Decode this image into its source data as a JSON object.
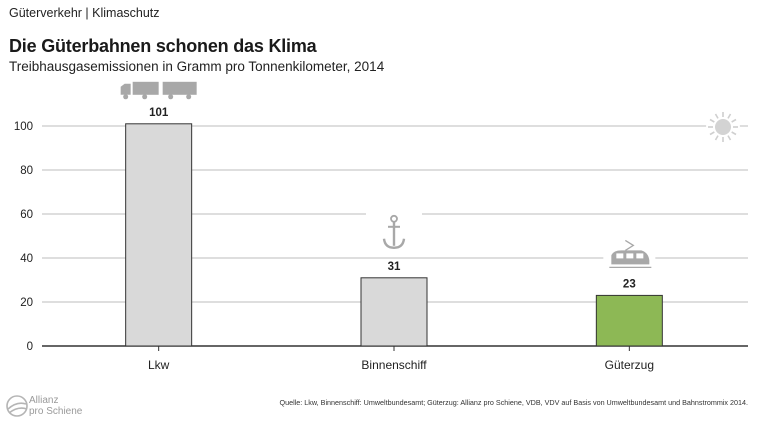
{
  "header": {
    "kicker": "Güterverkehr | Klimaschutz",
    "title": "Die Güterbahnen schonen das Klima",
    "subtitle": "Treibhausgasemissionen in Gramm pro Tonnenkilometer, 2014"
  },
  "chart_data": {
    "type": "bar",
    "title": "Die Güterbahnen schonen das Klima",
    "subtitle": "Treibhausgasemissionen in Gramm pro Tonnenkilometer, 2014",
    "xlabel": "",
    "ylabel": "",
    "categories": [
      "Lkw",
      "Binnenschiff",
      "Güterzug"
    ],
    "values": [
      101,
      31,
      23
    ],
    "value_labels": [
      "101",
      "31",
      "23"
    ],
    "yticks": [
      0,
      20,
      40,
      60,
      80,
      100
    ],
    "ylim": [
      0,
      100
    ],
    "grid": true,
    "legend": "none",
    "category_icons": [
      "truck-icon",
      "anchor-icon",
      "train-icon"
    ],
    "colors": {
      "bars": [
        "#d9d9d9",
        "#d9d9d9",
        "#8db855"
      ],
      "bar_stroke": "#333333",
      "grid": "#bdbdbd",
      "icon": "#a8a8a8"
    }
  },
  "footer": {
    "logo_line1": "Allianz",
    "logo_line2": "pro Schiene",
    "source": "Quelle: Lkw, Binnenschiff: Umweltbundesamt; Güterzug: Allianz pro Schiene, VDB, VDV auf Basis von Umweltbundesamt und Bahnstrommix 2014."
  }
}
